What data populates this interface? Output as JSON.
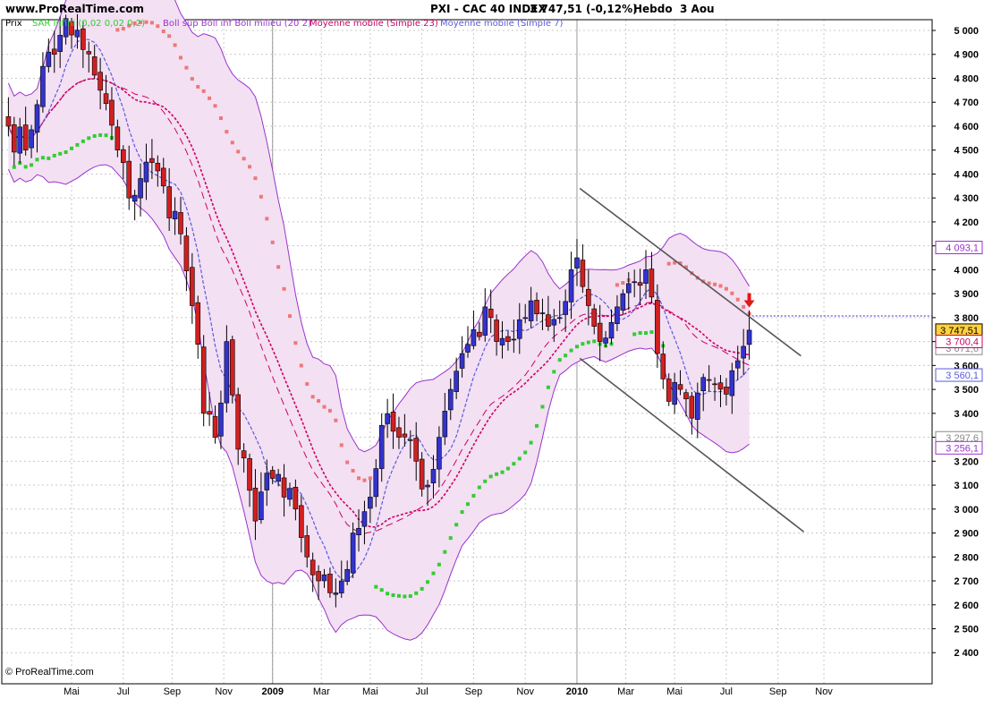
{
  "header": {
    "site": "www.ProRealTime.com",
    "instrument": "PXI - CAC 40 INDEX",
    "quote": "3 747,51 (-0,12%)",
    "period": "Hebdo",
    "date": "3 Aou"
  },
  "footer": {
    "copyright": "© ProRealTime.com"
  },
  "legend": {
    "price": "Prix",
    "sar": "SAR Infini (0,02 0,02 0,2)",
    "bollinger": "Boll sup Boll inf Boll milieu (20 2)",
    "ma23": "Moyenne mobile (Simple 23)",
    "ma7": "Moyenne mobile (Simple 7)"
  },
  "colors": {
    "up": "#3333cc",
    "down": "#d02020",
    "band_fill": "#f3e0f3",
    "band_line": "#9933cc",
    "ma23": "#cc0066",
    "ma7": "#5b5bdb",
    "sar_up": "#33cc33",
    "sar_down": "#ee7777",
    "channel": "#555555",
    "grid": "#c8c8c8"
  },
  "chart_data": {
    "type": "candlestick",
    "title": "PXI - CAC 40 INDEX",
    "timeframe": "weekly",
    "ylim": [
      2340,
      5070
    ],
    "yticks": [
      2400,
      2500,
      2600,
      2700,
      2800,
      2900,
      3000,
      3100,
      3200,
      3300,
      3400,
      3500,
      3600,
      3700,
      3800,
      3900,
      4000,
      4100,
      4200,
      4300,
      4400,
      4500,
      4600,
      4700,
      4800,
      4900,
      5000
    ],
    "ytick_labels": [
      "2 400",
      "2 500",
      "2 600",
      "2 700",
      "2 800",
      "2 900",
      "3 000",
      "3 100",
      "3 200",
      "3 300",
      "3 400",
      "3 500",
      "3 600",
      "3 700",
      "3 800",
      "3 900",
      "4 000",
      "4 100",
      "4 200",
      "4 300",
      "4 400",
      "4 500",
      "4 600",
      "4 700",
      "4 800",
      "4 900",
      "5 000"
    ],
    "xticks": [
      {
        "week": 11,
        "label": "Mai",
        "bold": false
      },
      {
        "week": 20,
        "label": "Jul",
        "bold": false
      },
      {
        "week": 28.5,
        "label": "Sep",
        "bold": false
      },
      {
        "week": 37.5,
        "label": "Nov",
        "bold": false
      },
      {
        "week": 46,
        "label": "2009",
        "bold": true
      },
      {
        "week": 54.5,
        "label": "Mar",
        "bold": false
      },
      {
        "week": 63,
        "label": "Mai",
        "bold": false
      },
      {
        "week": 72,
        "label": "Jul",
        "bold": false
      },
      {
        "week": 81,
        "label": "Sep",
        "bold": false
      },
      {
        "week": 90,
        "label": "Nov",
        "bold": false
      },
      {
        "week": 99,
        "label": "2010",
        "bold": true
      },
      {
        "week": 107.5,
        "label": "Mar",
        "bold": false
      },
      {
        "week": 116,
        "label": "Mai",
        "bold": false
      },
      {
        "week": 125,
        "label": "Jul",
        "bold": false
      },
      {
        "week": 134,
        "label": "Sep",
        "bold": false
      },
      {
        "week": 142,
        "label": "Nov",
        "bold": false
      }
    ],
    "year_lines": [
      46,
      99
    ],
    "anchors": {
      "week": [
        0,
        3,
        6,
        8,
        10,
        13,
        16,
        19,
        21,
        24,
        27,
        30,
        32,
        34,
        36,
        38,
        40,
        43,
        45,
        48,
        50,
        52,
        54,
        56,
        58,
        60,
        63,
        65,
        68,
        71,
        73,
        75,
        77,
        79,
        81,
        84,
        87,
        90,
        93,
        96,
        98,
        99,
        101,
        103,
        105,
        107,
        109,
        111,
        113,
        115,
        117,
        119,
        121,
        123,
        125,
        127,
        128,
        129
      ],
      "close": [
        4600,
        4500,
        4850,
        4900,
        5050,
        4920,
        4750,
        4500,
        4300,
        4450,
        4350,
        4150,
        3850,
        3400,
        3300,
        3700,
        3250,
        2950,
        3150,
        3050,
        3000,
        2800,
        2700,
        2650,
        2700,
        2900,
        3050,
        3350,
        3300,
        3200,
        3100,
        3300,
        3500,
        3650,
        3750,
        3800,
        3700,
        3800,
        3820,
        3800,
        4000,
        4050,
        3850,
        3700,
        3780,
        3900,
        3950,
        4000,
        3650,
        3450,
        3500,
        3380,
        3550,
        3520,
        3480,
        3620,
        3680,
        3747.51
      ]
    },
    "last_close": 3747.51,
    "indicator_labels": {
      "bollinger_upper": "4 093,1",
      "last_price": "3 747,51",
      "moving_average_23": "3 700,4",
      "moving_average_7": "3 560,1",
      "bollinger_lower": "3 256,1",
      "partly_hidden_1": "3 671,6",
      "partly_hidden_2": "3 297,6"
    },
    "indicator_values": {
      "bollinger_upper": 4093.1,
      "moving_average_23": 3700.4,
      "moving_average_7": 3560.1,
      "bollinger_lower": 3256.1,
      "partly_hidden_1": 3671.6,
      "partly_hidden_2": 3297.6
    },
    "channel_lines": [
      {
        "from": {
          "week": 99.5,
          "price": 4340
        },
        "to": {
          "week": 138,
          "price": 3640
        }
      },
      {
        "from": {
          "week": 99.5,
          "price": 3630
        },
        "to": {
          "week": 138.5,
          "price": 2905
        }
      }
    ],
    "resistance": {
      "price": 3807,
      "from_week": 129.5
    },
    "signal_arrow": {
      "week": 129,
      "price": 3850,
      "direction": "down"
    }
  }
}
